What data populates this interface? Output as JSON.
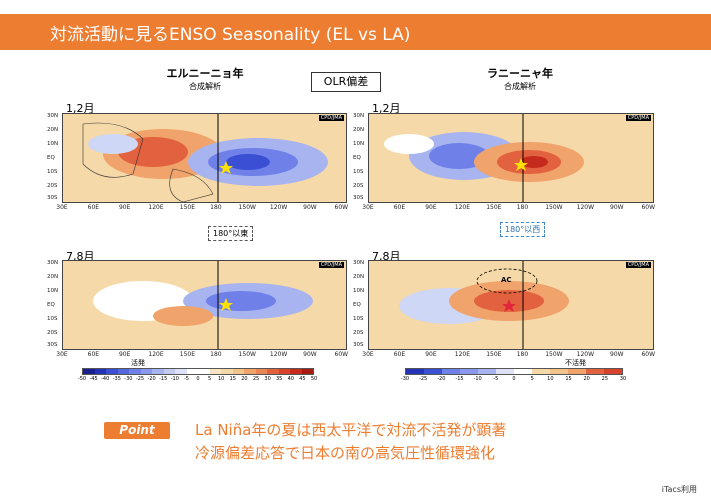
{
  "header": {
    "title": "対流活動に見るENSO Seasonality (EL vs LA)"
  },
  "left": {
    "title": "エルニーニョ年",
    "subtitle": "合成解析"
  },
  "right": {
    "title": "ラニーニャ年",
    "subtitle": "合成解析"
  },
  "center_label": "OLR偏差",
  "periods": {
    "left_top": "1,2月",
    "right_top": "1,2月",
    "left_bottom": "7,8月",
    "right_bottom": "7,8月"
  },
  "maps": {
    "lon_ticks": [
      "30E",
      "60E",
      "90E",
      "120E",
      "150E",
      "180",
      "150W",
      "120W",
      "90W",
      "60W"
    ],
    "lat_ticks": [
      "30N",
      "20N",
      "10N",
      "EQ",
      "10S",
      "20S",
      "30S"
    ],
    "source_tag": "CPD/JMA"
  },
  "callouts": {
    "left": "180°以東",
    "right": "180°以西",
    "ac": "AC"
  },
  "colorbars": {
    "left": {
      "label": "活発",
      "ticks": [
        "-50",
        "-45",
        "-40",
        "-35",
        "-30",
        "-25",
        "-20",
        "-15",
        "-10",
        "-5",
        "0",
        "5",
        "10",
        "15",
        "20",
        "25",
        "30",
        "35",
        "40",
        "45",
        "50"
      ]
    },
    "right": {
      "label": "不活発",
      "ticks": [
        "-30",
        "-25",
        "-20",
        "-15",
        "-10",
        "-5",
        "0",
        "5",
        "10",
        "15",
        "20",
        "25",
        "30"
      ]
    }
  },
  "point": {
    "badge": "Point",
    "line1": "La Niña年の夏は西太平洋で対流不活発が顕著",
    "line2": "冷源偏差応答で日本の南の高気圧性循環強化"
  },
  "credit": "iTacs利用",
  "colors": {
    "accent": "#ed7d31",
    "negative": "#3b4fd4",
    "positive": "#e2462a"
  }
}
